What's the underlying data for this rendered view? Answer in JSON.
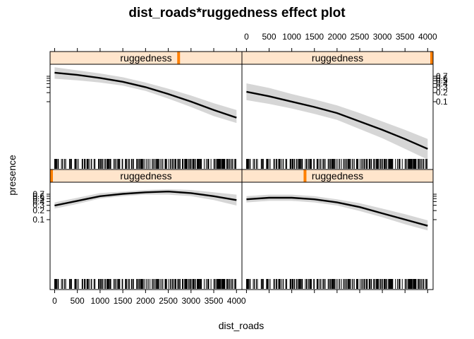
{
  "chart_data": {
    "type": "line",
    "title": "dist_roads*ruggedness effect plot",
    "xlabel": "dist_roads",
    "ylabel": "presence",
    "xlim": [
      -100,
      4120
    ],
    "x_ticks": [
      0,
      500,
      1000,
      1500,
      2000,
      2500,
      3000,
      3500,
      4000
    ],
    "y_ticks": [
      0.1,
      0.2,
      0.3,
      0.4,
      0.5,
      0.6,
      0.7
    ],
    "y_tick_labels": [
      "0.1",
      "0.2",
      "0.3",
      "0.4",
      "0.5",
      "0.6",
      "0.7"
    ],
    "strip_label": "ruggedness",
    "panels": [
      {
        "position": "bottom-left",
        "ruggedness_marker": 0.0,
        "x": [
          0,
          500,
          1000,
          1500,
          2000,
          2500,
          3000,
          3500,
          4000
        ],
        "fit": [
          0.48,
          0.54,
          0.6,
          0.63,
          0.65,
          0.66,
          0.64,
          0.6,
          0.55
        ],
        "lower": [
          0.44,
          0.5,
          0.57,
          0.6,
          0.62,
          0.62,
          0.6,
          0.55,
          0.48
        ],
        "upper": [
          0.52,
          0.58,
          0.64,
          0.66,
          0.68,
          0.69,
          0.68,
          0.65,
          0.62
        ]
      },
      {
        "position": "bottom-right",
        "ruggedness_marker": 0.33,
        "x": [
          0,
          500,
          1000,
          1500,
          2000,
          2500,
          3000,
          3500,
          4000
        ],
        "fit": [
          0.56,
          0.58,
          0.58,
          0.56,
          0.52,
          0.46,
          0.38,
          0.3,
          0.22
        ],
        "lower": [
          0.52,
          0.54,
          0.54,
          0.52,
          0.48,
          0.41,
          0.33,
          0.24,
          0.16
        ],
        "upper": [
          0.6,
          0.62,
          0.62,
          0.6,
          0.56,
          0.51,
          0.44,
          0.37,
          0.29
        ]
      },
      {
        "position": "top-left",
        "ruggedness_marker": 0.67,
        "x": [
          0,
          500,
          1000,
          1500,
          2000,
          2500,
          3000,
          3500,
          4000
        ],
        "fit": [
          0.67,
          0.64,
          0.6,
          0.55,
          0.48,
          0.39,
          0.29,
          0.18,
          0.08
        ],
        "lower": [
          0.59,
          0.57,
          0.54,
          0.5,
          0.43,
          0.33,
          0.22,
          0.1,
          0.01
        ],
        "upper": [
          0.74,
          0.7,
          0.66,
          0.61,
          0.54,
          0.46,
          0.37,
          0.27,
          0.18
        ]
      },
      {
        "position": "top-right",
        "ruggedness_marker": 1.0,
        "x": [
          0,
          500,
          1000,
          1500,
          2000,
          2500,
          3000,
          3500,
          4000
        ],
        "fit": [
          0.42,
          0.36,
          0.29,
          0.22,
          0.14,
          0.03,
          -0.08,
          -0.2,
          -0.33
        ],
        "lower": [
          0.31,
          0.26,
          0.2,
          0.13,
          0.05,
          -0.07,
          -0.19,
          -0.33,
          -0.47
        ],
        "upper": [
          0.53,
          0.47,
          0.39,
          0.32,
          0.24,
          0.14,
          0.03,
          -0.08,
          -0.2
        ]
      }
    ]
  }
}
